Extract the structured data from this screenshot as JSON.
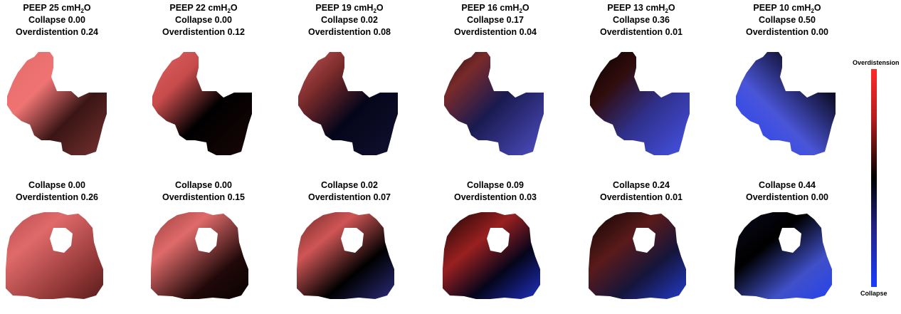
{
  "colorbar": {
    "top_label": "Overdistension",
    "bottom_label": "Collapse",
    "colors": [
      "#ff2a2a",
      "#000000",
      "#1a3cff"
    ]
  },
  "top_row": [
    {
      "peep_value": "25",
      "peep_unit_prefix": "cmH",
      "peep_unit_sub": "2",
      "peep_unit_suffix": "O",
      "collapse": "Collapse 0.00",
      "overdistention": "Overdistention 0.24"
    },
    {
      "peep_value": "22",
      "peep_unit_prefix": "cmH",
      "peep_unit_sub": "2",
      "peep_unit_suffix": "O",
      "collapse": "Collapse 0.00",
      "overdistention": "Overdistention 0.12"
    },
    {
      "peep_value": "19",
      "peep_unit_prefix": "cmH",
      "peep_unit_sub": "2",
      "peep_unit_suffix": "O",
      "collapse": "Collapse 0.02",
      "overdistention": "Overdistention 0.08"
    },
    {
      "peep_value": "16",
      "peep_unit_prefix": "cmH",
      "peep_unit_sub": "2",
      "peep_unit_suffix": "O",
      "collapse": "Collapse 0.17",
      "overdistention": "Overdistention 0.04"
    },
    {
      "peep_value": "13",
      "peep_unit_prefix": "cmH",
      "peep_unit_sub": "2",
      "peep_unit_suffix": "O",
      "collapse": "Collapse 0.36",
      "overdistention": "Overdistention 0.01"
    },
    {
      "peep_value": "10",
      "peep_unit_prefix": "cmH",
      "peep_unit_sub": "2",
      "peep_unit_suffix": "O",
      "collapse": "Collapse 0.50",
      "overdistention": "Overdistention 0.00"
    }
  ],
  "bottom_row": [
    {
      "collapse": "Collapse 0.00",
      "overdistention": "Overdistention 0.26"
    },
    {
      "collapse": "Collapse 0.00",
      "overdistention": "Overdistention 0.15"
    },
    {
      "collapse": "Collapse 0.02",
      "overdistention": "Overdistention 0.07"
    },
    {
      "collapse": "Collapse 0.09",
      "overdistention": "Overdistention 0.03"
    },
    {
      "collapse": "Collapse 0.24",
      "overdistention": "Overdistention 0.01"
    },
    {
      "collapse": "Collapse 0.44",
      "overdistention": "Overdistention 0.00"
    }
  ]
}
